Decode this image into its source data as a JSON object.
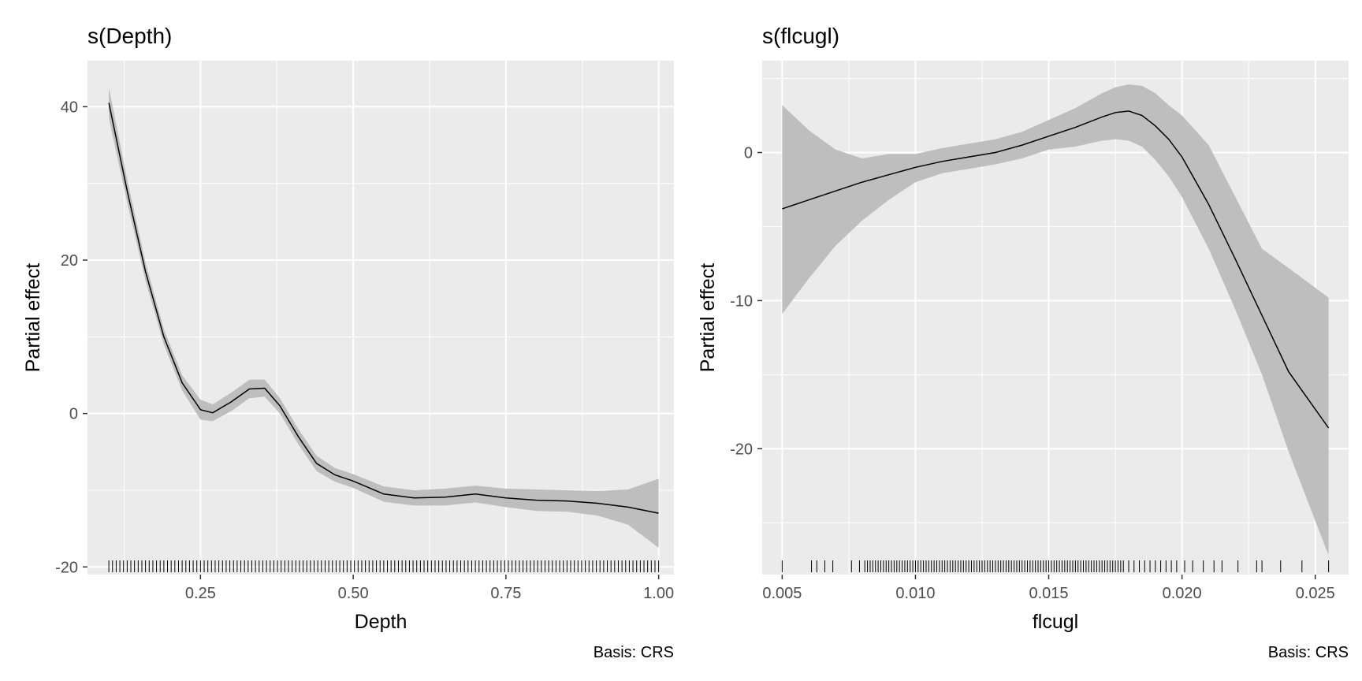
{
  "chart_data": [
    {
      "type": "line",
      "title": "s(Depth)",
      "xlabel": "Depth",
      "ylabel": "Partial effect",
      "caption": "Basis: CRS",
      "xlim": [
        0.065,
        1.025
      ],
      "ylim": [
        -21,
        46
      ],
      "xticks": [
        0.25,
        0.5,
        0.75,
        1.0
      ],
      "xtick_labels": [
        "0.25",
        "0.50",
        "0.75",
        "1.00"
      ],
      "yticks": [
        -20,
        0,
        20,
        40
      ],
      "ytick_labels": [
        "-20",
        "0",
        "20",
        "40"
      ],
      "grid": true,
      "series": [
        {
          "x": [
            0.1,
            0.13,
            0.16,
            0.19,
            0.22,
            0.25,
            0.27,
            0.3,
            0.33,
            0.355,
            0.38,
            0.41,
            0.44,
            0.47,
            0.5,
            0.55,
            0.6,
            0.65,
            0.7,
            0.75,
            0.8,
            0.85,
            0.9,
            0.95,
            1.0
          ],
          "y": [
            40.5,
            29.0,
            18.5,
            10.0,
            4.0,
            0.5,
            0.1,
            1.5,
            3.2,
            3.3,
            1.0,
            -3.0,
            -6.5,
            -8.0,
            -8.8,
            -10.5,
            -11.0,
            -10.9,
            -10.5,
            -11.0,
            -11.3,
            -11.4,
            -11.7,
            -12.2,
            -13.0
          ],
          "lower": [
            38.5,
            27.5,
            17.3,
            9.0,
            3.0,
            -0.8,
            -1.0,
            0.3,
            2.0,
            2.2,
            0.0,
            -4.0,
            -7.5,
            -8.9,
            -9.7,
            -11.5,
            -12.0,
            -12.0,
            -11.6,
            -12.2,
            -12.7,
            -12.8,
            -13.3,
            -14.5,
            -17.5
          ],
          "upper": [
            42.5,
            30.5,
            19.7,
            11.0,
            5.0,
            1.8,
            1.2,
            2.7,
            4.4,
            4.4,
            2.0,
            -2.0,
            -5.5,
            -7.1,
            -7.9,
            -9.5,
            -10.0,
            -9.8,
            -9.4,
            -9.8,
            -9.9,
            -10.0,
            -10.1,
            -9.9,
            -8.5
          ]
        }
      ],
      "rug": [
        0.1,
        0.106,
        0.112,
        0.118,
        0.124,
        0.13,
        0.136,
        0.142,
        0.148,
        0.154,
        0.16,
        0.166,
        0.172,
        0.178,
        0.184,
        0.19,
        0.196,
        0.202,
        0.208,
        0.214,
        0.22,
        0.226,
        0.232,
        0.238,
        0.244,
        0.25,
        0.256,
        0.262,
        0.268,
        0.274,
        0.28,
        0.286,
        0.292,
        0.298,
        0.304,
        0.31,
        0.316,
        0.322,
        0.328,
        0.334,
        0.34,
        0.346,
        0.352,
        0.358,
        0.364,
        0.37,
        0.376,
        0.382,
        0.388,
        0.394,
        0.4,
        0.406,
        0.412,
        0.418,
        0.424,
        0.43,
        0.436,
        0.442,
        0.448,
        0.454,
        0.46,
        0.466,
        0.472,
        0.478,
        0.484,
        0.49,
        0.496,
        0.502,
        0.508,
        0.514,
        0.52,
        0.526,
        0.532,
        0.538,
        0.544,
        0.55,
        0.556,
        0.562,
        0.568,
        0.574,
        0.58,
        0.586,
        0.592,
        0.598,
        0.604,
        0.61,
        0.616,
        0.622,
        0.628,
        0.634,
        0.64,
        0.646,
        0.652,
        0.658,
        0.664,
        0.67,
        0.676,
        0.682,
        0.688,
        0.694,
        0.7,
        0.706,
        0.712,
        0.718,
        0.724,
        0.73,
        0.736,
        0.742,
        0.748,
        0.754,
        0.76,
        0.766,
        0.772,
        0.778,
        0.784,
        0.79,
        0.796,
        0.802,
        0.808,
        0.814,
        0.82,
        0.826,
        0.832,
        0.838,
        0.844,
        0.85,
        0.856,
        0.862,
        0.868,
        0.874,
        0.88,
        0.886,
        0.892,
        0.898,
        0.904,
        0.91,
        0.916,
        0.922,
        0.928,
        0.934,
        0.94,
        0.946,
        0.952,
        0.958,
        0.964,
        0.97,
        0.976,
        0.982,
        0.988,
        0.994,
        1.0
      ]
    },
    {
      "type": "line",
      "title": "s(flcugl)",
      "xlabel": "flcugl",
      "ylabel": "Partial effect",
      "caption": "Basis: CRS",
      "xlim": [
        0.00425,
        0.02625
      ],
      "ylim": [
        -28.5,
        6.2
      ],
      "xticks": [
        0.005,
        0.01,
        0.015,
        0.02,
        0.025
      ],
      "xtick_labels": [
        "0.005",
        "0.010",
        "0.015",
        "0.020",
        "0.025"
      ],
      "yticks": [
        -20,
        -10,
        0
      ],
      "ytick_labels": [
        "-20",
        "-10",
        "0"
      ],
      "grid": true,
      "series": [
        {
          "x": [
            0.005,
            0.006,
            0.007,
            0.008,
            0.009,
            0.01,
            0.011,
            0.012,
            0.013,
            0.014,
            0.015,
            0.016,
            0.017,
            0.0175,
            0.018,
            0.0185,
            0.019,
            0.0195,
            0.02,
            0.021,
            0.022,
            0.023,
            0.024,
            0.0255
          ],
          "y": [
            -3.8,
            -3.2,
            -2.6,
            -2.0,
            -1.5,
            -1.0,
            -0.6,
            -0.3,
            0.0,
            0.5,
            1.1,
            1.7,
            2.4,
            2.7,
            2.8,
            2.5,
            1.8,
            0.9,
            -0.3,
            -3.5,
            -7.2,
            -11.0,
            -14.8,
            -18.6
          ],
          "lower": [
            -10.9,
            -8.5,
            -6.3,
            -4.6,
            -3.2,
            -2.0,
            -1.4,
            -1.1,
            -0.8,
            -0.4,
            0.2,
            0.4,
            0.8,
            0.9,
            0.8,
            0.4,
            -0.5,
            -1.6,
            -3.0,
            -6.5,
            -10.6,
            -15.0,
            -20.2,
            -27.2
          ],
          "upper": [
            3.2,
            1.5,
            0.2,
            -0.4,
            -0.1,
            -0.1,
            0.3,
            0.6,
            0.9,
            1.4,
            2.2,
            3.0,
            4.0,
            4.4,
            4.6,
            4.5,
            4.0,
            3.2,
            2.5,
            0.5,
            -3.0,
            -6.5,
            -7.8,
            -9.8
          ]
        }
      ],
      "rug": [
        0.005,
        0.0061,
        0.0063,
        0.0066,
        0.0069,
        0.0076,
        0.0079,
        0.0081,
        0.0082,
        0.0083,
        0.0084,
        0.0085,
        0.0086,
        0.0087,
        0.0088,
        0.0089,
        0.009,
        0.0091,
        0.0092,
        0.0093,
        0.0094,
        0.0095,
        0.0096,
        0.0097,
        0.0098,
        0.0099,
        0.01,
        0.0101,
        0.0102,
        0.0103,
        0.0104,
        0.0105,
        0.0106,
        0.0107,
        0.0108,
        0.0109,
        0.011,
        0.0111,
        0.0112,
        0.0113,
        0.0114,
        0.0115,
        0.0116,
        0.0117,
        0.0118,
        0.0119,
        0.012,
        0.0121,
        0.0122,
        0.0123,
        0.0124,
        0.0125,
        0.0126,
        0.0127,
        0.0128,
        0.0129,
        0.013,
        0.0131,
        0.0132,
        0.0133,
        0.0134,
        0.0135,
        0.0136,
        0.0137,
        0.0138,
        0.0139,
        0.014,
        0.0141,
        0.0142,
        0.0143,
        0.0144,
        0.0145,
        0.0146,
        0.0147,
        0.0148,
        0.0149,
        0.015,
        0.0151,
        0.0152,
        0.0153,
        0.0154,
        0.0155,
        0.0156,
        0.0157,
        0.0158,
        0.0159,
        0.016,
        0.0161,
        0.0162,
        0.0163,
        0.0164,
        0.0165,
        0.0166,
        0.0167,
        0.0168,
        0.0169,
        0.017,
        0.0171,
        0.0172,
        0.0173,
        0.0174,
        0.0175,
        0.0176,
        0.0177,
        0.0178,
        0.018,
        0.0182,
        0.0184,
        0.0186,
        0.0188,
        0.019,
        0.0192,
        0.0194,
        0.0196,
        0.0198,
        0.0201,
        0.0204,
        0.0208,
        0.0212,
        0.0215,
        0.0221,
        0.0228,
        0.023,
        0.0237,
        0.0245,
        0.0255
      ]
    }
  ]
}
